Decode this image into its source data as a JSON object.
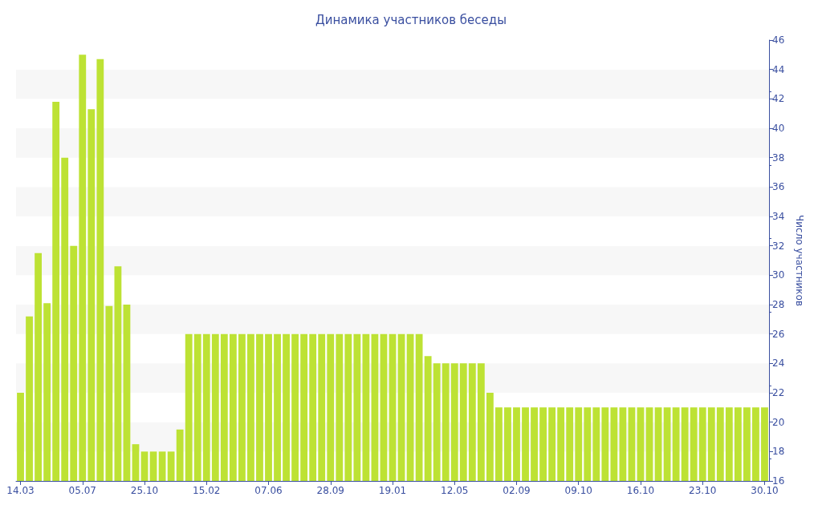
{
  "chart_data": {
    "type": "bar",
    "title": "Динамика участников беседы",
    "ylabel": "Число участников",
    "categories": [
      "14.03",
      null,
      null,
      null,
      null,
      null,
      null,
      "05.07",
      null,
      null,
      null,
      null,
      null,
      null,
      "25.10",
      null,
      null,
      null,
      null,
      null,
      null,
      "15.02",
      null,
      null,
      null,
      null,
      null,
      null,
      "07.06",
      null,
      null,
      null,
      null,
      null,
      null,
      "28.09",
      null,
      null,
      null,
      null,
      null,
      null,
      "19.01",
      null,
      null,
      null,
      null,
      null,
      null,
      "12.05",
      null,
      null,
      null,
      null,
      null,
      null,
      "02.09",
      null,
      null,
      null,
      null,
      null,
      null,
      "09.10",
      null,
      null,
      null,
      null,
      null,
      null,
      "16.10",
      null,
      null,
      null,
      null,
      null,
      null,
      "23.10",
      null,
      null,
      null,
      null,
      null,
      null,
      "30.10"
    ],
    "values": [
      22,
      27.2,
      31.5,
      28.1,
      41.8,
      38,
      32,
      45,
      41.3,
      44.7,
      27.9,
      30.6,
      28,
      18.5,
      18,
      18,
      18,
      18,
      19.5,
      26,
      26,
      26,
      26,
      26,
      26,
      26,
      26,
      26,
      26,
      26,
      26,
      26,
      26,
      26,
      26,
      26,
      26,
      26,
      26,
      26,
      26,
      26,
      26,
      26,
      26,
      26,
      24.5,
      24,
      24,
      24,
      24,
      24,
      24,
      22,
      21,
      21,
      21,
      21,
      21,
      21,
      21,
      21,
      21,
      21,
      21,
      21,
      21,
      21,
      21,
      21,
      21,
      21,
      21,
      21,
      21,
      21,
      21,
      21,
      21,
      21,
      21,
      21,
      21,
      21,
      21
    ],
    "color": "#bde234",
    "ylim": [
      16,
      46
    ],
    "yticks": [
      16,
      18,
      20,
      22,
      24,
      26,
      28,
      30,
      32,
      34,
      36,
      38,
      40,
      42,
      44,
      46
    ]
  }
}
